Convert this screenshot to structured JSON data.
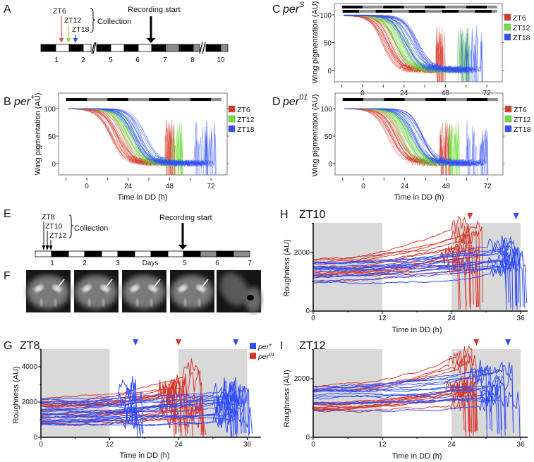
{
  "panel_labels": {
    "A": "A",
    "B": "B",
    "C": "C",
    "D": "D",
    "E": "E",
    "F": "F",
    "G": "G",
    "H": "H",
    "I": "I"
  },
  "colors": {
    "red": "#d9372a",
    "green": "#6fe03a",
    "blue": "#2f4dfa",
    "red_legend": "#e05a50",
    "green_legend": "#7de04a",
    "blue_legend": "#2e46f0",
    "shade": "#d9d9d9",
    "dark": "#000000",
    "subjective": "#8c8c8c"
  },
  "panelA": {
    "timepoints": [
      "ZT6",
      "ZT12",
      "ZT18"
    ],
    "collection_label": "Collection",
    "recording_label": "Recording start",
    "days": [
      "1",
      "2",
      "5",
      "6",
      "7",
      "8",
      "10"
    ]
  },
  "panelE": {
    "timepoints": [
      "ZT8",
      "ZT10",
      "ZT12"
    ],
    "collection_label": "Collection",
    "recording_label": "Recording start",
    "days": [
      "1",
      "2",
      "3",
      "5",
      "6",
      "7"
    ],
    "days_label": "Days"
  },
  "panelF": {
    "image_count": 5
  },
  "roughness_legend": [
    {
      "genotype": "per",
      "superscript": "+",
      "color": "#2f4dfa"
    },
    {
      "genotype": "per",
      "superscript": "01",
      "color": "#d9372a"
    }
  ],
  "chart_data": [
    {
      "id": "B",
      "type": "line",
      "genotype": "per",
      "superscript": "+",
      "xlabel": "Time in DD (h)",
      "ylabel": "Wing pigmentation (AU)",
      "xticks": [
        0,
        24,
        48,
        72
      ],
      "yticks": [
        0,
        50,
        100
      ],
      "xlim": [
        -12,
        78
      ],
      "ylim": [
        -20,
        120
      ],
      "legend_position": "right",
      "series": [
        {
          "name": "ZT6",
          "color": "#d9372a",
          "n_traces": 26,
          "decline_midpoint_h": 18,
          "eclosion_h": 48
        },
        {
          "name": "ZT12",
          "color": "#6fe03a",
          "n_traces": 24,
          "decline_midpoint_h": 25,
          "eclosion_h": 52
        },
        {
          "name": "ZT18",
          "color": "#2f4dfa",
          "n_traces": 24,
          "decline_midpoint_h": 30,
          "eclosion_h": 68
        }
      ]
    },
    {
      "id": "C",
      "type": "line",
      "genotype": "per",
      "superscript": "S",
      "xlabel": "",
      "ylabel": "Wing pigmentation (AU)",
      "xticks": [
        0,
        24,
        48,
        72
      ],
      "yticks": [
        0,
        50,
        100
      ],
      "xlim": [
        -12,
        78
      ],
      "ylim": [
        -20,
        120
      ],
      "legend_position": "right",
      "series": [
        {
          "name": "ZT6",
          "color": "#d9372a",
          "n_traces": 26,
          "decline_midpoint_h": 15,
          "eclosion_h": 45
        },
        {
          "name": "ZT12",
          "color": "#6fe03a",
          "n_traces": 28,
          "decline_midpoint_h": 22,
          "eclosion_h": 59
        },
        {
          "name": "ZT18",
          "color": "#2f4dfa",
          "n_traces": 26,
          "decline_midpoint_h": 28,
          "eclosion_h": 62
        }
      ]
    },
    {
      "id": "D",
      "type": "line",
      "genotype": "per",
      "superscript": "01",
      "xlabel": "Time in DD (h)",
      "ylabel": "Wing pigmentation (AU)",
      "xticks": [
        0,
        24,
        48,
        72
      ],
      "yticks": [
        0,
        50,
        100
      ],
      "xlim": [
        -12,
        78
      ],
      "ylim": [
        -20,
        120
      ],
      "legend_position": "right",
      "series": [
        {
          "name": "ZT6",
          "color": "#d9372a",
          "n_traces": 26,
          "decline_midpoint_h": 18,
          "eclosion_h": 47
        },
        {
          "name": "ZT12",
          "color": "#6fe03a",
          "n_traces": 26,
          "decline_midpoint_h": 24,
          "eclosion_h": 52
        },
        {
          "name": "ZT18",
          "color": "#2f4dfa",
          "n_traces": 24,
          "decline_midpoint_h": 30,
          "eclosion_h": 66
        }
      ]
    },
    {
      "id": "G",
      "type": "line",
      "title": "ZT8",
      "xlabel": "Time in DD (h)",
      "ylabel": "Roughness (AU)",
      "xticks": [
        0,
        12,
        24,
        36
      ],
      "yticks": [
        0,
        2000,
        4000
      ],
      "xlim": [
        0,
        38
      ],
      "ylim": [
        0,
        5000
      ],
      "subjective_day_h": [
        [
          0,
          12
        ],
        [
          24,
          36
        ]
      ],
      "annotations_h": [
        {
          "color": "#2f4dfa",
          "t": 16.5
        },
        {
          "color": "#d9372a",
          "t": 24
        },
        {
          "color": "#2f4dfa",
          "t": 34
        }
      ],
      "series": [
        {
          "name": "per+",
          "color": "#2f4dfa",
          "n_traces": 22,
          "end_h": [
            16,
            18,
            33,
            37
          ]
        },
        {
          "name": "per01",
          "color": "#d9372a",
          "n_traces": 18,
          "end_h": [
            23,
            29
          ]
        }
      ]
    },
    {
      "id": "H",
      "type": "line",
      "title": "ZT10",
      "xlabel": "Time in DD (h)",
      "ylabel": "Roughness (AU)",
      "xticks": [
        0,
        12,
        24,
        36
      ],
      "yticks": [
        0,
        2000
      ],
      "xlim": [
        0,
        38
      ],
      "ylim": [
        0,
        3000
      ],
      "subjective_day_h": [
        [
          0,
          12
        ],
        [
          24,
          36
        ]
      ],
      "annotations_h": [
        {
          "color": "#d9372a",
          "t": 27.2
        },
        {
          "color": "#2f4dfa",
          "t": 35.2
        }
      ],
      "series": [
        {
          "name": "per+",
          "color": "#2f4dfa",
          "n_traces": 14,
          "end_h": [
            33,
            37
          ]
        },
        {
          "name": "per01",
          "color": "#d9372a",
          "n_traces": 14,
          "end_h": [
            25,
            30
          ]
        }
      ]
    },
    {
      "id": "I",
      "type": "line",
      "title": "ZT12",
      "xlabel": "Time in DD (h)",
      "ylabel": "Roughness (AU)",
      "xticks": [
        0,
        12,
        24,
        36
      ],
      "yticks": [
        0,
        2000
      ],
      "xlim": [
        0,
        38
      ],
      "ylim": [
        0,
        3000
      ],
      "subjective_day_h": [
        [
          0,
          12
        ],
        [
          24,
          36
        ]
      ],
      "annotations_h": [
        {
          "color": "#d9372a",
          "t": 28.3
        },
        {
          "color": "#2f4dfa",
          "t": 33.8
        }
      ],
      "series": [
        {
          "name": "per+",
          "color": "#2f4dfa",
          "n_traces": 14,
          "end_h": [
            30,
            37
          ]
        },
        {
          "name": "per01",
          "color": "#d9372a",
          "n_traces": 14,
          "end_h": [
            26,
            29
          ]
        }
      ]
    }
  ]
}
